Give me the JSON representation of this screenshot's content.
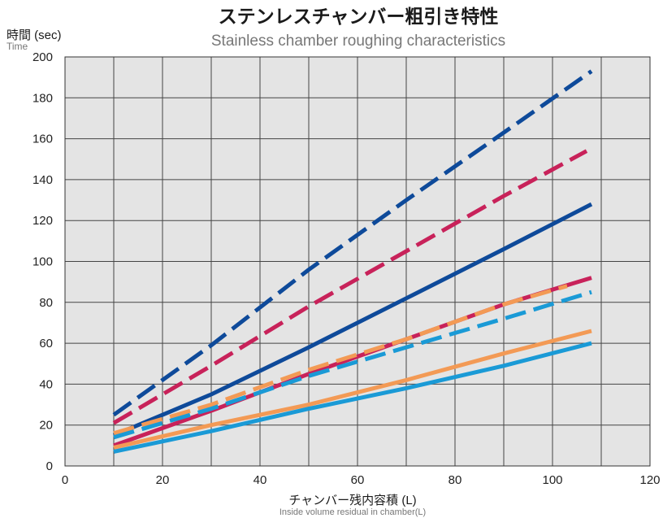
{
  "chart_data": {
    "type": "line",
    "title": "ステンレスチャンバー粗引き特性",
    "subtitle": "Stainless chamber roughing characteristics",
    "ylabel": "時間 (sec)",
    "ylabel_sub": "Time",
    "xlabel": "チャンバー残内容積 (L)",
    "xlabel_sub": "Inside volume residual in chamber(L)",
    "xlim": [
      0,
      120
    ],
    "ylim": [
      0,
      200
    ],
    "x_ticks": [
      "0",
      "20",
      "40",
      "60",
      "80",
      "100",
      "120"
    ],
    "y_ticks": [
      "0",
      "20",
      "40",
      "60",
      "80",
      "100",
      "120",
      "140",
      "160",
      "180",
      "200"
    ],
    "grid": true,
    "legend": "none",
    "series": [
      {
        "color": "#0e4a9a",
        "dash": true,
        "x": [
          10,
          30,
          50,
          70,
          90,
          108
        ],
        "y": [
          25,
          59,
          96,
          130,
          163,
          193
        ]
      },
      {
        "color": "#c8225a",
        "dash": true,
        "x": [
          10,
          30,
          50,
          70,
          90,
          107
        ],
        "y": [
          21,
          49,
          78,
          105,
          132,
          154
        ]
      },
      {
        "color": "#0e4a9a",
        "dash": false,
        "x": [
          10,
          30,
          50,
          70,
          90,
          108
        ],
        "y": [
          15,
          35,
          58,
          82,
          106,
          128
        ]
      },
      {
        "color": "#c8225a",
        "dash": false,
        "x": [
          10,
          30,
          50,
          70,
          90,
          108
        ],
        "y": [
          10,
          27,
          45,
          62,
          79,
          92
        ]
      },
      {
        "color": "#f39a55",
        "dash": true,
        "x": [
          10,
          30,
          50,
          70,
          90,
          103
        ],
        "y": [
          16,
          30,
          47,
          62,
          79,
          88
        ]
      },
      {
        "color": "#1a9ad6",
        "dash": true,
        "x": [
          10,
          30,
          50,
          70,
          90,
          108
        ],
        "y": [
          14,
          28,
          44,
          58,
          72,
          85
        ]
      },
      {
        "color": "#f39a55",
        "dash": false,
        "x": [
          10,
          30,
          50,
          70,
          90,
          108
        ],
        "y": [
          9,
          20,
          30,
          42,
          55,
          66
        ]
      },
      {
        "color": "#1a9ad6",
        "dash": false,
        "x": [
          10,
          30,
          50,
          70,
          90,
          108
        ],
        "y": [
          7,
          17,
          28,
          38,
          49,
          60
        ]
      }
    ]
  }
}
